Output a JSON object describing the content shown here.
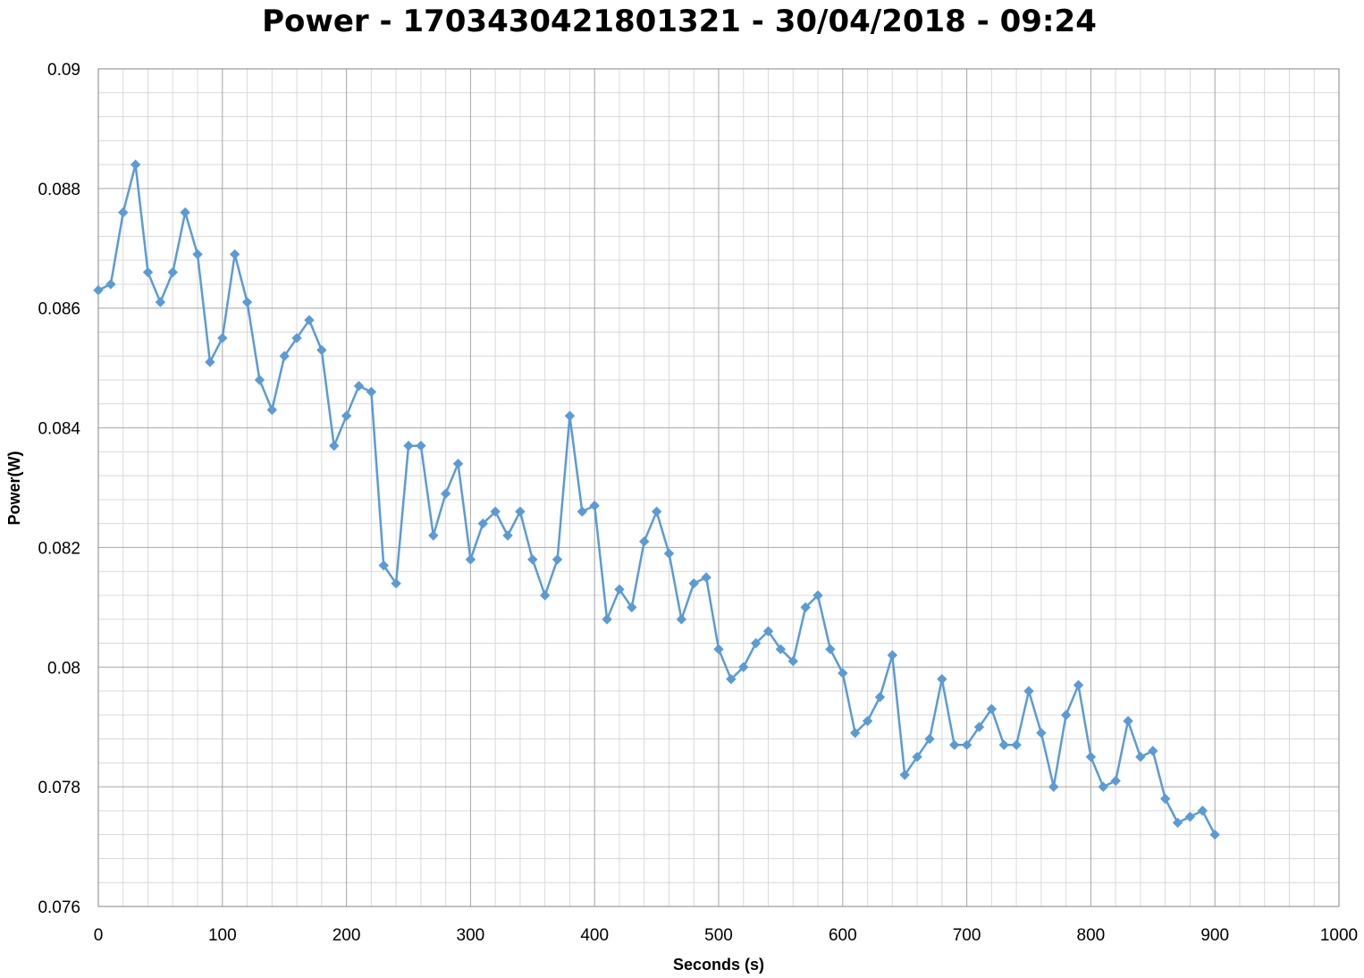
{
  "chart_data": {
    "type": "line",
    "title": "Power - 1703430421801321 - 30/04/2018 - 09:24",
    "xlabel": "Seconds (s)",
    "ylabel": "Power(W)",
    "xlim": [
      0,
      1000
    ],
    "ylim": [
      0.076,
      0.09
    ],
    "x_ticks": [
      0,
      100,
      200,
      300,
      400,
      500,
      600,
      700,
      800,
      900,
      1000
    ],
    "x_tick_labels": [
      "0",
      "100",
      "200",
      "300",
      "400",
      "500",
      "600",
      "700",
      "800",
      "900",
      "1000"
    ],
    "y_ticks": [
      0.076,
      0.078,
      0.08,
      0.082,
      0.084,
      0.086,
      0.088,
      0.09
    ],
    "y_tick_labels": [
      "0.076",
      "0.078",
      "0.08",
      "0.082",
      "0.084",
      "0.086",
      "0.088",
      "0.09"
    ],
    "grid": true,
    "legend": "none",
    "marker": "diamond",
    "color": "#5B9BD5",
    "series": [
      {
        "x": [
          0,
          10,
          20,
          30,
          40,
          50,
          60,
          70,
          80,
          90,
          100,
          110,
          120,
          130,
          140,
          150,
          160,
          170,
          180,
          190,
          200,
          210,
          220,
          230,
          240,
          250,
          260,
          270,
          280,
          290,
          300,
          310,
          320,
          330,
          340,
          350,
          360,
          370,
          380,
          390,
          400,
          410,
          420,
          430,
          440,
          450,
          460,
          470,
          480,
          490,
          500,
          510,
          520,
          530,
          540,
          550,
          560,
          570,
          580,
          590,
          600,
          610,
          620,
          630,
          640,
          650,
          660,
          670,
          680,
          690,
          700,
          710,
          720,
          730,
          740,
          750,
          760,
          770,
          780,
          790,
          800,
          810,
          820,
          830,
          840,
          850,
          860,
          870,
          880,
          890,
          900
        ],
        "y": [
          0.0863,
          0.0864,
          0.0876,
          0.0884,
          0.0866,
          0.0861,
          0.0866,
          0.0876,
          0.0869,
          0.0851,
          0.0855,
          0.0869,
          0.0861,
          0.0848,
          0.0843,
          0.0852,
          0.0855,
          0.0858,
          0.0853,
          0.0837,
          0.0842,
          0.0847,
          0.0846,
          0.0817,
          0.0814,
          0.0837,
          0.0837,
          0.0822,
          0.0829,
          0.0834,
          0.0818,
          0.0824,
          0.0826,
          0.0822,
          0.0826,
          0.0818,
          0.0812,
          0.0818,
          0.0842,
          0.0826,
          0.0827,
          0.0808,
          0.0813,
          0.081,
          0.0821,
          0.0826,
          0.0819,
          0.0808,
          0.0814,
          0.0815,
          0.0803,
          0.0798,
          0.08,
          0.0804,
          0.0806,
          0.0803,
          0.0801,
          0.081,
          0.0812,
          0.0803,
          0.0799,
          0.0789,
          0.0791,
          0.0795,
          0.0802,
          0.0782,
          0.0785,
          0.0788,
          0.0798,
          0.0787,
          0.0787,
          0.079,
          0.0793,
          0.0787,
          0.0787,
          0.0796,
          0.0789,
          0.078,
          0.0792,
          0.0797,
          0.0785,
          0.078,
          0.0781,
          0.0791,
          0.0785,
          0.0786,
          0.0778,
          0.0774,
          0.0775,
          0.0776,
          0.0772
        ]
      }
    ]
  }
}
